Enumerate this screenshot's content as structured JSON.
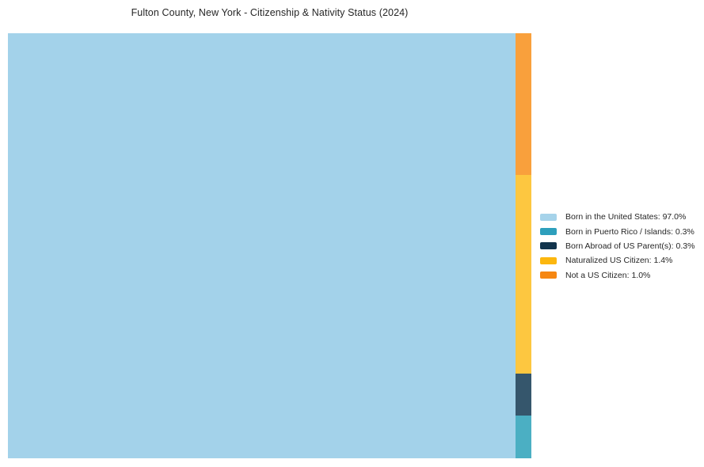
{
  "title": "Fulton County, New York - Citizenship & Nativity Status (2024)",
  "chart_data": {
    "type": "treemap",
    "title": "Fulton County, New York - Citizenship & Nativity Status (2024)",
    "categories": [
      "Born in the United States",
      "Born in Puerto Rico / Islands",
      "Born Abroad of US Parent(s)",
      "Naturalized US Citizen",
      "Not a US Citizen"
    ],
    "values": [
      97.0,
      0.3,
      0.3,
      1.4,
      1.0
    ],
    "unit": "%",
    "layout": {
      "main_category": "Born in the United States",
      "main_position": "left",
      "column_order_top_to_bottom": [
        "Not a US Citizen",
        "Naturalized US Citizen",
        "Born Abroad of US Parent(s)",
        "Born in Puerto Rico / Islands"
      ],
      "legend_position": "right",
      "grid": false
    },
    "fill_colors": {
      "Born in the United States": "#A3D2EA",
      "Born in Puerto Rico / Islands": "#4BAFC3",
      "Born Abroad of US Parent(s)": "#35566C",
      "Naturalized US Citizen": "#FDC740",
      "Not a US Citizen": "#F9A03C"
    },
    "legend": [
      {
        "label": "Born in the United States: 97.0%",
        "color": "#A6D3EA"
      },
      {
        "label": "Born in Puerto Rico / Islands: 0.3%",
        "color": "#2D9FBC"
      },
      {
        "label": "Born Abroad of US Parent(s): 0.3%",
        "color": "#12344C"
      },
      {
        "label": "Naturalized US Citizen: 1.4%",
        "color": "#FCB70F"
      },
      {
        "label": "Not a US Citizen: 1.0%",
        "color": "#F68712"
      }
    ]
  }
}
